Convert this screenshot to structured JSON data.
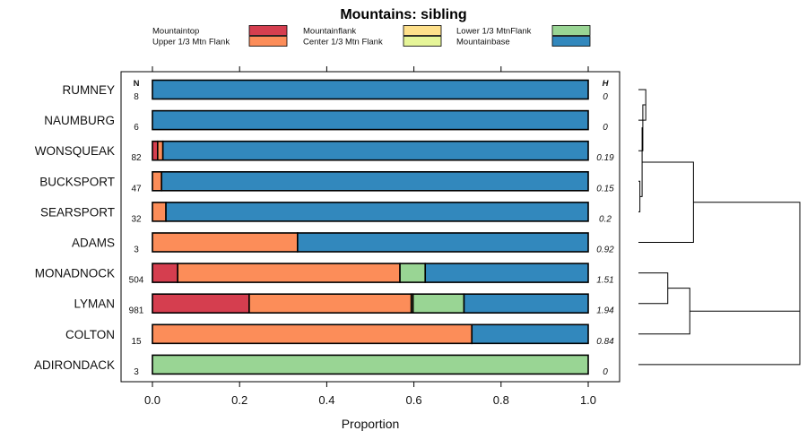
{
  "chart_data": {
    "type": "bar",
    "orientation": "horizontal",
    "stacked": true,
    "title": "Mountains: sibling",
    "xlabel": "Proportion",
    "xlim": [
      0,
      1
    ],
    "xticks": [
      "0.0",
      "0.2",
      "0.4",
      "0.6",
      "0.8",
      "1.0"
    ],
    "xtick_values": [
      0,
      0.2,
      0.4,
      0.6,
      0.8,
      1.0
    ],
    "n_header": "N",
    "h_header": "H",
    "legend": [
      {
        "name": "Mountaintop",
        "color": "#d53e4f"
      },
      {
        "name": "Upper 1/3 Mtn Flank",
        "color": "#fc8d59"
      },
      {
        "name": "Mountainflank",
        "color": "#fee08b"
      },
      {
        "name": "Center 1/3 Mtn Flank",
        "color": "#e6f598"
      },
      {
        "name": "Lower 1/3 MtnFlank",
        "color": "#99d594"
      },
      {
        "name": "Mountainbase",
        "color": "#3288bd"
      }
    ],
    "rows": [
      {
        "label": "RUMNEY",
        "n": "8",
        "h": "0",
        "values": [
          0,
          0,
          0,
          0,
          0,
          1.0
        ]
      },
      {
        "label": "NAUMBURG",
        "n": "6",
        "h": "0",
        "values": [
          0,
          0,
          0,
          0,
          0,
          1.0
        ]
      },
      {
        "label": "WONSQUEAK",
        "n": "82",
        "h": "0.19",
        "values": [
          0.012,
          0.012,
          0,
          0,
          0,
          0.976
        ]
      },
      {
        "label": "BUCKSPORT",
        "n": "47",
        "h": "0.15",
        "values": [
          0,
          0.021,
          0,
          0,
          0,
          0.979
        ]
      },
      {
        "label": "SEARSPORT",
        "n": "32",
        "h": "0.2",
        "values": [
          0,
          0.031,
          0,
          0,
          0,
          0.969
        ]
      },
      {
        "label": "ADAMS",
        "n": "3",
        "h": "0.92",
        "values": [
          0,
          0.333,
          0,
          0,
          0,
          0.667
        ]
      },
      {
        "label": "MONADNOCK",
        "n": "504",
        "h": "1.51",
        "values": [
          0.058,
          0.51,
          0,
          0,
          0.058,
          0.374
        ]
      },
      {
        "label": "LYMAN",
        "n": "981",
        "h": "1.94",
        "values": [
          0.222,
          0.372,
          0.004,
          0,
          0.117,
          0.285
        ]
      },
      {
        "label": "COLTON",
        "n": "15",
        "h": "0.84",
        "values": [
          0,
          0.733,
          0,
          0,
          0,
          0.267
        ]
      },
      {
        "label": "ADIRONDACK",
        "n": "3",
        "h": "0",
        "values": [
          0,
          0,
          0,
          0,
          1.0,
          0
        ]
      }
    ],
    "dendrogram": {
      "merges": [
        {
          "left": 0,
          "right": 1,
          "height": 0.02
        },
        {
          "left": "m0",
          "right": 2,
          "height": 0.012
        },
        {
          "left": 3,
          "right": 4,
          "height": 0.004
        },
        {
          "left": "m1",
          "right": "m2",
          "height": 0.01
        },
        {
          "left": "m3",
          "right": 5,
          "height": 0.15
        },
        {
          "left": 6,
          "right": 7,
          "height": 0.08
        },
        {
          "left": "m5",
          "right": 8,
          "height": 0.14
        },
        {
          "left": "m4",
          "right": "m6",
          "height": 0.44
        },
        {
          "left": "m7",
          "right": 9,
          "height": 0.44
        }
      ]
    }
  }
}
